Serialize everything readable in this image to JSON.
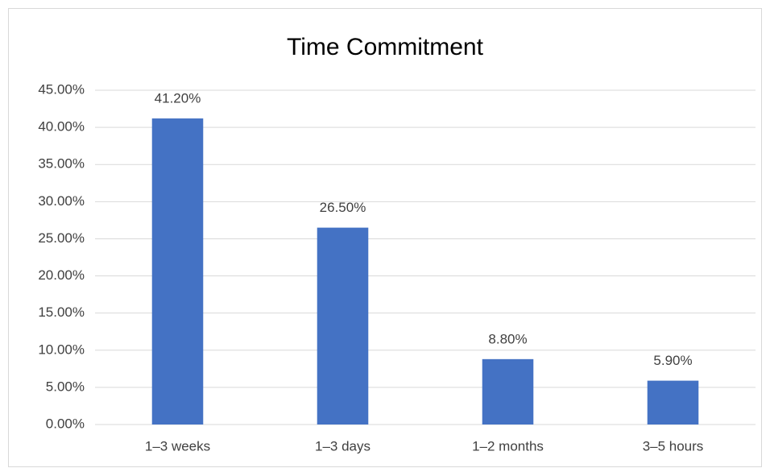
{
  "chart_data": {
    "type": "bar",
    "title": "Time Commitment",
    "categories": [
      "1–3 weeks",
      "1–3 days",
      "1–2 months",
      "3–5 hours"
    ],
    "values": [
      41.2,
      26.5,
      8.8,
      5.9
    ],
    "value_labels": [
      "41.20%",
      "26.50%",
      "8.80%",
      "5.90%"
    ],
    "color": "#4472c4",
    "ylim": [
      0,
      45
    ],
    "yticks": [
      {
        "value": 0,
        "label": "0.00%"
      },
      {
        "value": 5,
        "label": "5.00%"
      },
      {
        "value": 10,
        "label": "10.00%"
      },
      {
        "value": 15,
        "label": "15.00%"
      },
      {
        "value": 20,
        "label": "20.00%"
      },
      {
        "value": 25,
        "label": "25.00%"
      },
      {
        "value": 30,
        "label": "30.00%"
      },
      {
        "value": 35,
        "label": "35.00%"
      },
      {
        "value": 40,
        "label": "40.00%"
      },
      {
        "value": 45,
        "label": "45.00%"
      }
    ],
    "grid": true
  }
}
